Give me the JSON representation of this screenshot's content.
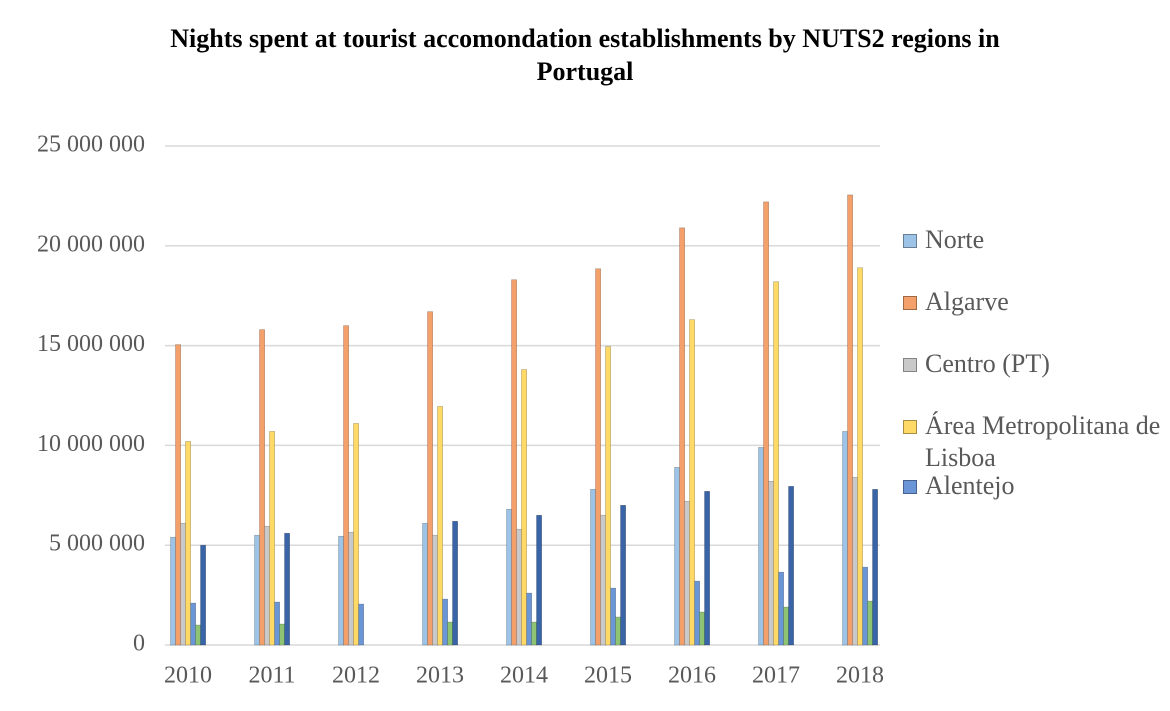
{
  "chart_data": {
    "type": "bar",
    "title": "Nights spent at tourist accomondation establishments by NUTS2 regions in Portugal",
    "categories": [
      "2010",
      "2011",
      "2012",
      "2013",
      "2014",
      "2015",
      "2016",
      "2017",
      "2018"
    ],
    "series": [
      {
        "name": "Norte",
        "color": "#9dc3e6",
        "values": [
          5400000,
          5500000,
          5450000,
          6100000,
          6800000,
          7800000,
          8900000,
          9900000,
          10700000
        ]
      },
      {
        "name": "Algarve",
        "color": "#f4a06a",
        "values": [
          15050000,
          15800000,
          16000000,
          16700000,
          18300000,
          18850000,
          20900000,
          22200000,
          22550000
        ]
      },
      {
        "name": "Centro (PT)",
        "color": "#c9c9c9",
        "values": [
          6100000,
          5950000,
          5650000,
          5500000,
          5800000,
          6500000,
          7200000,
          8200000,
          8400000
        ]
      },
      {
        "name": "Área Metropolitana de Lisboa",
        "color": "#ffd966",
        "values": [
          10200000,
          10700000,
          11100000,
          11950000,
          13800000,
          14950000,
          16300000,
          18200000,
          18900000
        ]
      },
      {
        "name": "Alentejo",
        "color": "#6a96d8",
        "values": [
          2100000,
          2150000,
          2050000,
          2300000,
          2600000,
          2850000,
          3200000,
          3650000,
          3900000
        ]
      },
      {
        "color": "#8fc374",
        "values": [
          1000000,
          1050000,
          null,
          1150000,
          1150000,
          1400000,
          1650000,
          1900000,
          2200000
        ]
      },
      {
        "color": "#3a64a8",
        "values": [
          5000000,
          5600000,
          null,
          6200000,
          6500000,
          7000000,
          7700000,
          7950000,
          7800000
        ]
      }
    ],
    "ylim": [
      0,
      25000000
    ],
    "yticks": [
      0,
      {
        "value": 5000000,
        "label": "5 000 000"
      },
      {
        "value": 10000000,
        "label": "10 000 000"
      },
      {
        "value": 15000000,
        "label": "15 000 000"
      },
      {
        "value": 20000000,
        "label": "20 000 000"
      },
      {
        "value": 25000000,
        "label": "25 000 000"
      }
    ],
    "grid": true,
    "legend": "right"
  }
}
